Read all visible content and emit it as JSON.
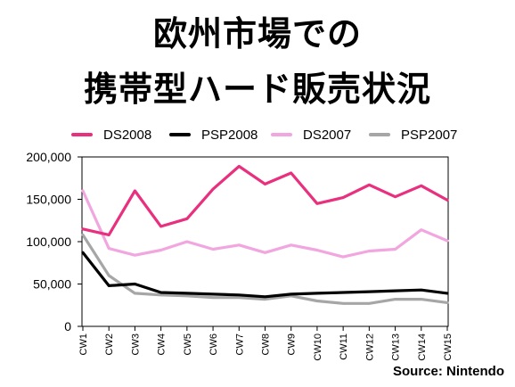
{
  "title": {
    "line1": "欧州市場での",
    "line2": "携帯型ハード販売状況"
  },
  "source": "Source: Nintendo",
  "chart_data": {
    "type": "line",
    "categories": [
      "CW1",
      "CW2",
      "CW3",
      "CW4",
      "CW5",
      "CW6",
      "CW7",
      "CW8",
      "CW9",
      "CW10",
      "CW11",
      "CW12",
      "CW13",
      "CW14",
      "CW15"
    ],
    "ylim": [
      0,
      200000
    ],
    "yticks": [
      0,
      50000,
      100000,
      150000,
      200000
    ],
    "ytick_labels": [
      "0",
      "50,000",
      "100,000",
      "150,000",
      "200,000"
    ],
    "grid": false,
    "legend_position": "top",
    "series": [
      {
        "name": "DS2008",
        "color": "#e8307e",
        "values": [
          115000,
          108000,
          160000,
          118000,
          127000,
          162000,
          189000,
          168000,
          181000,
          145000,
          152000,
          167000,
          153000,
          166000,
          149000
        ]
      },
      {
        "name": "PSP2008",
        "color": "#000000",
        "values": [
          87000,
          48000,
          50000,
          40000,
          39000,
          38000,
          37000,
          35000,
          38000,
          39000,
          40000,
          41000,
          42000,
          43000,
          39000
        ]
      },
      {
        "name": "DS2007",
        "color": "#f2a6df",
        "values": [
          160000,
          92000,
          84000,
          90000,
          100000,
          91000,
          96000,
          87000,
          96000,
          90000,
          82000,
          89000,
          91000,
          114000,
          101000
        ]
      },
      {
        "name": "PSP2007",
        "color": "#a6a6a6",
        "values": [
          108000,
          60000,
          39000,
          37000,
          36000,
          34000,
          34000,
          32000,
          36000,
          30000,
          27000,
          27000,
          32000,
          32000,
          28000
        ]
      }
    ]
  }
}
